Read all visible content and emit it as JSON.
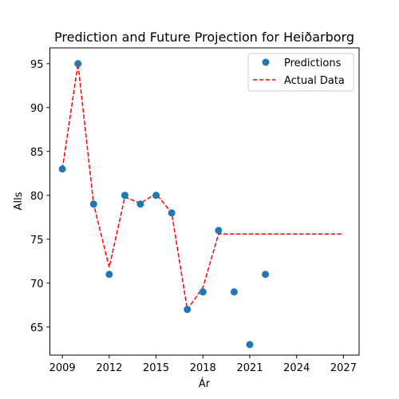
{
  "chart_data": {
    "type": "scatter",
    "title": "Prediction and Future Projection for Heiðarborg",
    "xlabel": "Ár",
    "ylabel": "Alls",
    "xlim": [
      2008.2,
      2028.0
    ],
    "ylim": [
      61.8,
      96.8
    ],
    "xticks": [
      2009,
      2012,
      2015,
      2018,
      2021,
      2024,
      2027
    ],
    "yticks": [
      65,
      70,
      75,
      80,
      85,
      90,
      95
    ],
    "legend_position": "top-right",
    "grid": false,
    "series": [
      {
        "name": "Predictions",
        "kind": "scatter",
        "color": "#1f77b4",
        "points": [
          {
            "x": 2009,
            "y": 83
          },
          {
            "x": 2010,
            "y": 95
          },
          {
            "x": 2011,
            "y": 79
          },
          {
            "x": 2012,
            "y": 71
          },
          {
            "x": 2013,
            "y": 80
          },
          {
            "x": 2014,
            "y": 79
          },
          {
            "x": 2015,
            "y": 80
          },
          {
            "x": 2016,
            "y": 78
          },
          {
            "x": 2017,
            "y": 67
          },
          {
            "x": 2018,
            "y": 69
          },
          {
            "x": 2019,
            "y": 76
          },
          {
            "x": 2020,
            "y": 69
          },
          {
            "x": 2021,
            "y": 63
          },
          {
            "x": 2022,
            "y": 71
          }
        ]
      },
      {
        "name": "Actual Data",
        "kind": "line",
        "style": "dashed",
        "color": "#ff0000",
        "points": [
          {
            "x": 2009,
            "y": 83
          },
          {
            "x": 2010,
            "y": 95
          },
          {
            "x": 2011,
            "y": 79
          },
          {
            "x": 2012,
            "y": 71.8
          },
          {
            "x": 2013,
            "y": 79.8
          },
          {
            "x": 2014,
            "y": 79.1
          },
          {
            "x": 2015,
            "y": 80.2
          },
          {
            "x": 2016,
            "y": 78
          },
          {
            "x": 2017,
            "y": 67
          },
          {
            "x": 2018,
            "y": 69.5
          },
          {
            "x": 2019,
            "y": 75.6
          },
          {
            "x": 2020,
            "y": 75.6
          },
          {
            "x": 2021,
            "y": 75.6
          },
          {
            "x": 2022,
            "y": 75.6
          },
          {
            "x": 2023,
            "y": 75.6
          },
          {
            "x": 2024,
            "y": 75.6
          },
          {
            "x": 2025,
            "y": 75.6
          },
          {
            "x": 2026,
            "y": 75.6
          },
          {
            "x": 2027,
            "y": 75.6
          }
        ]
      }
    ]
  }
}
